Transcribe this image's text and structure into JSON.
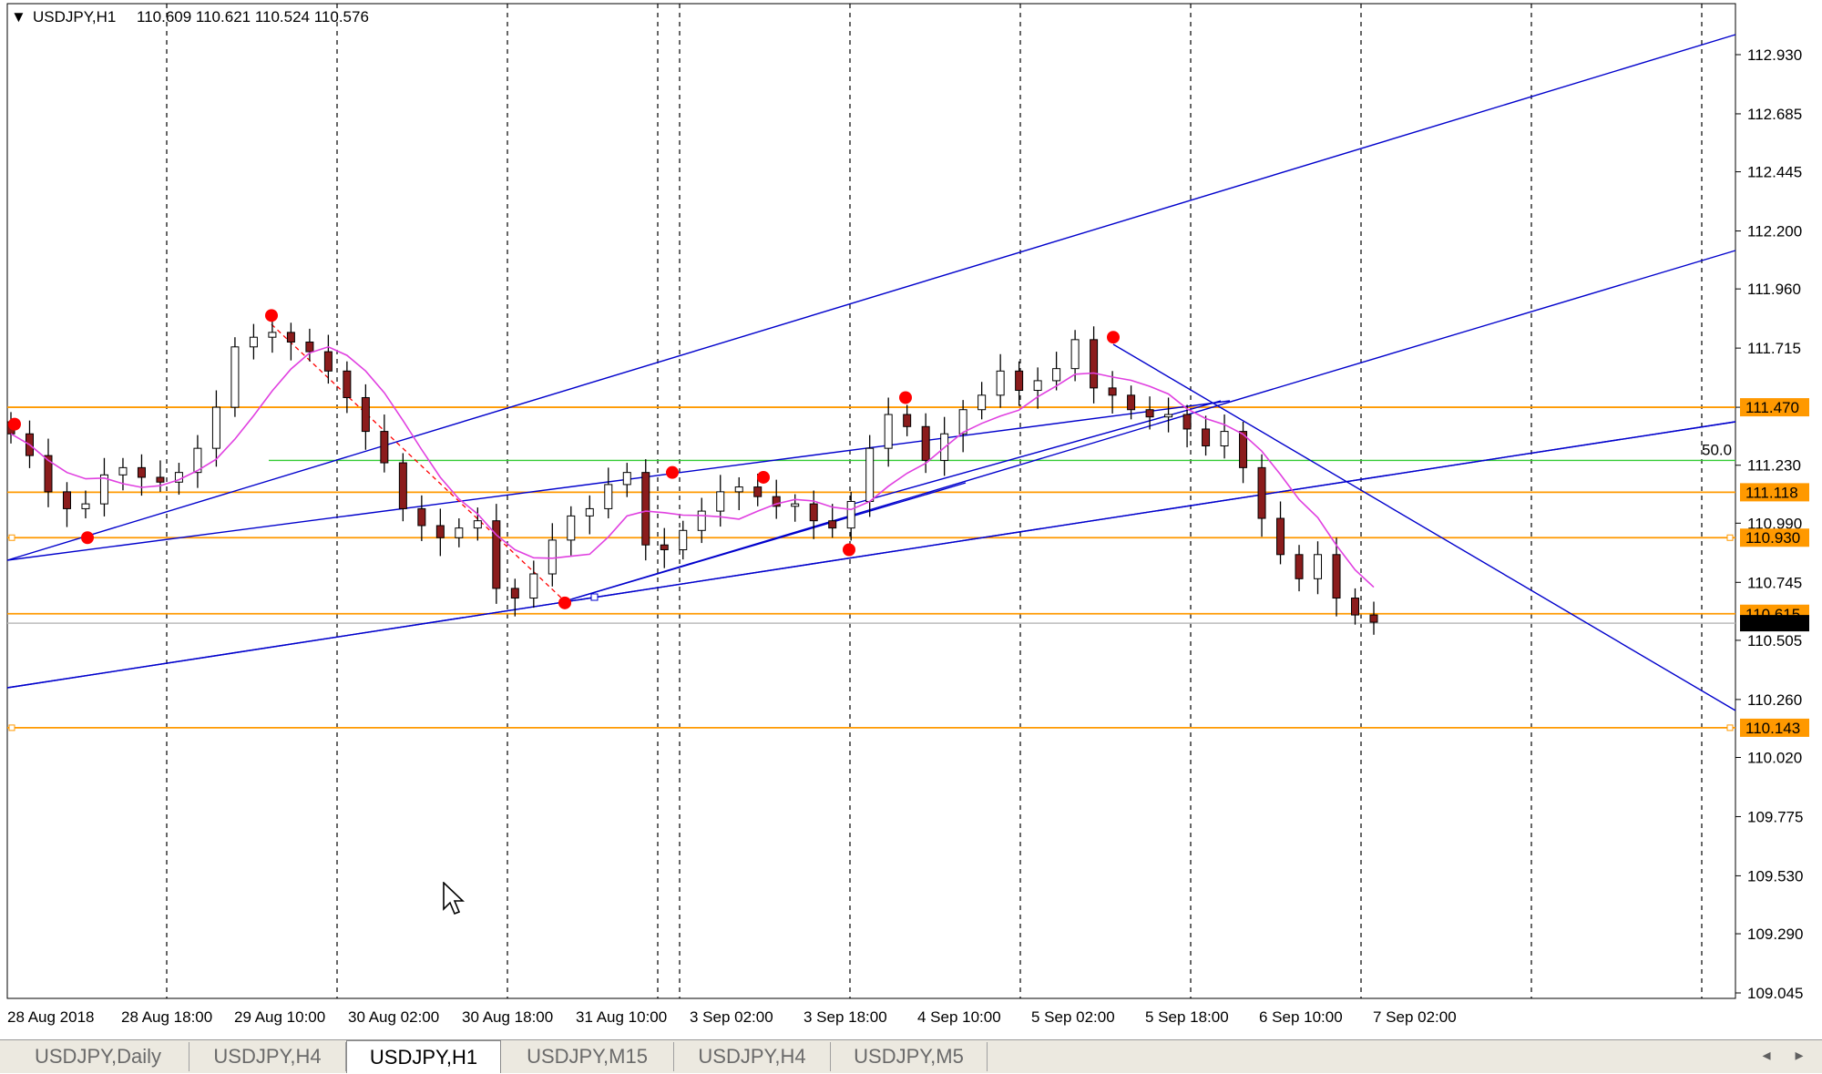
{
  "window": {
    "symbol_header": "USDJPY,H1",
    "ohlc": "110.609 110.621 110.524 110.576"
  },
  "chart_data": {
    "type": "candlestick",
    "symbol": "USDJPY",
    "timeframe": "H1",
    "y_axis": {
      "ticks": [
        "112.930",
        "112.685",
        "112.445",
        "112.200",
        "111.960",
        "111.715",
        "111.470",
        "111.230",
        "110.990",
        "110.745",
        "110.505",
        "110.260",
        "110.020",
        "109.775",
        "109.530",
        "109.290",
        "109.045"
      ],
      "ylim": [
        109.01,
        113.15
      ]
    },
    "x_axis": {
      "ticks": [
        "28 Aug 2018",
        "28 Aug 18:00",
        "29 Aug 10:00",
        "30 Aug 02:00",
        "30 Aug 18:00",
        "31 Aug 10:00",
        "3 Sep 02:00",
        "3 Sep 18:00",
        "4 Sep 10:00",
        "5 Sep 02:00",
        "5 Sep 18:00",
        "6 Sep 10:00",
        "7 Sep 02:00"
      ]
    },
    "current_price": 110.576,
    "price_levels": [
      {
        "label": "111.470",
        "value": 111.47,
        "color": "#ff9900"
      },
      {
        "label": "111.118",
        "value": 111.118,
        "color": "#ff9900"
      },
      {
        "label": "110.930",
        "value": 110.93,
        "color": "#ff9900"
      },
      {
        "label": "110.615",
        "value": 110.615,
        "color": "#ff9900"
      },
      {
        "label": "110.143",
        "value": 110.143,
        "color": "#ff9900"
      }
    ],
    "fib_level": {
      "label": "50.0",
      "value": 111.25,
      "color": "#33cc33"
    },
    "close_series_approx": [
      111.36,
      111.27,
      111.12,
      111.05,
      111.07,
      111.19,
      111.22,
      111.18,
      111.16,
      111.2,
      111.3,
      111.47,
      111.72,
      111.76,
      111.78,
      111.74,
      111.7,
      111.62,
      111.51,
      111.37,
      111.24,
      111.05,
      110.98,
      110.93,
      110.97,
      111.0,
      110.72,
      110.68,
      110.78,
      110.92,
      111.02,
      111.05,
      111.15,
      111.2,
      110.9,
      110.88,
      110.96,
      111.04,
      111.12,
      111.14,
      111.1,
      111.06,
      111.07,
      111.0,
      110.97,
      111.08,
      111.3,
      111.44,
      111.39,
      111.25,
      111.36,
      111.46,
      111.52,
      111.62,
      111.54,
      111.58,
      111.63,
      111.75,
      111.55,
      111.52,
      111.46,
      111.43,
      111.44,
      111.38,
      111.31,
      111.37,
      111.22,
      111.01,
      110.86,
      110.76,
      110.86,
      110.68,
      110.61,
      110.58
    ],
    "colors": {
      "up_candle": "#ffffff",
      "down_candle": "#8b1c1c",
      "trend_lines": "#0000cc",
      "moving_average": "#e040e0",
      "pivot_markers": "#ff0000",
      "price_label_bg": "#ff9900",
      "current_price_bg": "#000000"
    }
  },
  "tabs": [
    {
      "label": "USDJPY,Daily",
      "active": false
    },
    {
      "label": "USDJPY,H4",
      "active": false
    },
    {
      "label": "USDJPY,H1",
      "active": true
    },
    {
      "label": "USDJPY,M15",
      "active": false
    },
    {
      "label": "USDJPY,H4",
      "active": false
    },
    {
      "label": "USDJPY,M5",
      "active": false
    }
  ],
  "icons": {
    "tab_scroll_left": "◂",
    "tab_scroll_right": "▸",
    "dropdown": "▼"
  }
}
